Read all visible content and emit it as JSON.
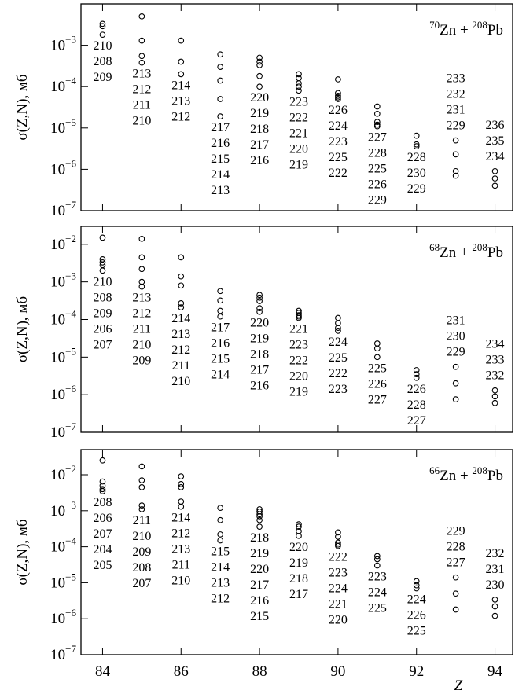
{
  "chart_data": [
    {
      "type": "scatter",
      "title": "70Zn + 208Pb",
      "y_label": "σ(Z,N), мб",
      "log_y": true,
      "xlim": [
        83.45,
        94.45
      ],
      "ylim": [
        1e-07,
        0.01
      ],
      "xticks": [
        84,
        86,
        88,
        90,
        92,
        94
      ],
      "yticks": [
        {
          "value": 0.001,
          "label": "10−3"
        },
        {
          "value": 0.0001,
          "label": "10−4"
        },
        {
          "value": 1e-05,
          "label": "10−5"
        },
        {
          "value": 1e-06,
          "label": "10−6"
        },
        {
          "value": 1e-07,
          "label": "10−7"
        }
      ],
      "groups": [
        {
          "x": 84,
          "values": [
            0.0033,
            0.0029,
            0.0018
          ],
          "labels": [
            "210",
            "208",
            "209"
          ]
        },
        {
          "x": 85,
          "values": [
            0.005,
            0.0013,
            0.00055,
            0.00038
          ],
          "labels": [
            "213",
            "212",
            "211",
            "210"
          ]
        },
        {
          "x": 86,
          "values": [
            0.0013,
            0.0004,
            0.0002
          ],
          "labels": [
            "214",
            "213",
            "212"
          ]
        },
        {
          "x": 87,
          "values": [
            0.0006,
            0.0003,
            0.00014,
            5e-05,
            1.9e-05
          ],
          "labels": [
            "217",
            "216",
            "215",
            "214",
            "213"
          ]
        },
        {
          "x": 88,
          "values": [
            0.0005,
            0.0004,
            0.00033,
            0.00018,
            0.0001
          ],
          "labels": [
            "220",
            "219",
            "218",
            "217",
            "216"
          ]
        },
        {
          "x": 89,
          "values": [
            0.0002,
            0.00016,
            0.00012,
            0.0001,
            8e-05
          ],
          "labels": [
            "223",
            "222",
            "221",
            "220",
            "219"
          ]
        },
        {
          "x": 90,
          "values": [
            0.00015,
            7e-05,
            6e-05,
            5.5e-05,
            5e-05
          ],
          "labels": [
            "226",
            "224",
            "223",
            "225",
            "222"
          ]
        },
        {
          "x": 91,
          "values": [
            3.3e-05,
            2.2e-05,
            1.4e-05,
            1.2e-05,
            1.1e-05
          ],
          "labels": [
            "227",
            "228",
            "225",
            "226",
            "229"
          ]
        },
        {
          "x": 92,
          "values": [
            6.5e-06,
            4e-06,
            3.6e-06
          ],
          "labels": [
            "228",
            "230",
            "229"
          ]
        },
        {
          "x": 93,
          "values": [
            5e-06,
            2.3e-06,
            9e-07,
            7e-07
          ],
          "labels": [
            "233",
            "232",
            "231",
            "229"
          ]
        },
        {
          "x": 94,
          "values": [
            9e-07,
            6e-07,
            4e-07
          ],
          "labels": [
            "236",
            "235",
            "234"
          ]
        }
      ]
    },
    {
      "type": "scatter",
      "title": "68Zn + 208Pb",
      "y_label": "σ(Z,N), мб",
      "log_y": true,
      "xlim": [
        83.45,
        94.45
      ],
      "ylim": [
        1e-07,
        0.03
      ],
      "xticks": [
        84,
        86,
        88,
        90,
        92,
        94
      ],
      "yticks": [
        {
          "value": 0.01,
          "label": "10−2"
        },
        {
          "value": 0.001,
          "label": "10−3"
        },
        {
          "value": 0.0001,
          "label": "10−4"
        },
        {
          "value": 1e-05,
          "label": "10−5"
        },
        {
          "value": 1e-06,
          "label": "10−6"
        },
        {
          "value": 1e-07,
          "label": "10−7"
        }
      ],
      "groups": [
        {
          "x": 84,
          "values": [
            0.015,
            0.004,
            0.0033,
            0.0028,
            0.002
          ],
          "labels": [
            "210",
            "208",
            "209",
            "206",
            "207"
          ]
        },
        {
          "x": 85,
          "values": [
            0.014,
            0.0045,
            0.0022,
            0.001,
            0.00075
          ],
          "labels": [
            "213",
            "212",
            "211",
            "210",
            "209"
          ]
        },
        {
          "x": 86,
          "values": [
            0.0045,
            0.0014,
            0.0008,
            0.00027,
            0.00021
          ],
          "labels": [
            "214",
            "213",
            "212",
            "211",
            "210"
          ]
        },
        {
          "x": 87,
          "values": [
            0.00057,
            0.00032,
            0.00017,
            0.00012
          ],
          "labels": [
            "217",
            "216",
            "215",
            "214"
          ]
        },
        {
          "x": 88,
          "values": [
            0.00045,
            0.00038,
            0.00031,
            0.0002,
            0.00016
          ],
          "labels": [
            "220",
            "219",
            "218",
            "217",
            "216"
          ]
        },
        {
          "x": 89,
          "values": [
            0.00017,
            0.00015,
            0.00013,
            0.00012,
            0.00011
          ],
          "labels": [
            "221",
            "223",
            "222",
            "220",
            "219"
          ]
        },
        {
          "x": 90,
          "values": [
            0.00011,
            8e-05,
            6e-05,
            5e-05
          ],
          "labels": [
            "224",
            "225",
            "222",
            "223"
          ]
        },
        {
          "x": 91,
          "values": [
            2.3e-05,
            1.7e-05,
            1e-05
          ],
          "labels": [
            "225",
            "226",
            "227"
          ]
        },
        {
          "x": 92,
          "values": [
            4.5e-06,
            3.5e-06,
            2.8e-06
          ],
          "labels": [
            "226",
            "228",
            "227"
          ]
        },
        {
          "x": 93,
          "values": [
            5.5e-06,
            2e-06,
            7.5e-07
          ],
          "labels": [
            "231",
            "230",
            "229"
          ]
        },
        {
          "x": 94,
          "values": [
            1.3e-06,
            9e-07,
            6e-07
          ],
          "labels": [
            "234",
            "233",
            "232"
          ]
        }
      ]
    },
    {
      "type": "scatter",
      "title": "66Zn + 208Pb",
      "y_label": "σ(Z,N), мб",
      "x_label": "Z",
      "log_y": true,
      "xlim": [
        83.45,
        94.45
      ],
      "ylim": [
        1e-07,
        0.05
      ],
      "xticks": [
        84,
        86,
        88,
        90,
        92,
        94
      ],
      "yticks": [
        {
          "value": 0.01,
          "label": "10−2"
        },
        {
          "value": 0.001,
          "label": "10−3"
        },
        {
          "value": 0.0001,
          "label": "10−4"
        },
        {
          "value": 1e-05,
          "label": "10−5"
        },
        {
          "value": 1e-06,
          "label": "10−6"
        },
        {
          "value": 1e-07,
          "label": "10−7"
        }
      ],
      "groups": [
        {
          "x": 84,
          "values": [
            0.025,
            0.0065,
            0.005,
            0.004,
            0.0035
          ],
          "labels": [
            "208",
            "206",
            "207",
            "204",
            "205"
          ]
        },
        {
          "x": 85,
          "values": [
            0.017,
            0.007,
            0.0045,
            0.0014,
            0.0011
          ],
          "labels": [
            "211",
            "210",
            "209",
            "208",
            "207"
          ]
        },
        {
          "x": 86,
          "values": [
            0.009,
            0.0055,
            0.0045,
            0.0018,
            0.0013
          ],
          "labels": [
            "214",
            "212",
            "213",
            "211",
            "210"
          ]
        },
        {
          "x": 87,
          "values": [
            0.0012,
            0.00055,
            0.00022,
            0.00015
          ],
          "labels": [
            "215",
            "214",
            "213",
            "212"
          ]
        },
        {
          "x": 88,
          "values": [
            0.0011,
            0.00095,
            0.0008,
            0.0007,
            0.00055,
            0.00036
          ],
          "labels": [
            "218",
            "219",
            "220",
            "217",
            "216",
            "215"
          ]
        },
        {
          "x": 89,
          "values": [
            0.00042,
            0.00036,
            0.00027,
            0.0002
          ],
          "labels": [
            "220",
            "219",
            "218",
            "217"
          ]
        },
        {
          "x": 90,
          "values": [
            0.00025,
            0.00019,
            0.00013,
            0.000115,
            0.000105
          ],
          "labels": [
            "222",
            "223",
            "224",
            "221",
            "220"
          ]
        },
        {
          "x": 91,
          "values": [
            5.5e-05,
            4.5e-05,
            3e-05
          ],
          "labels": [
            "223",
            "224",
            "225"
          ]
        },
        {
          "x": 92,
          "values": [
            1.1e-05,
            8.5e-06,
            7e-06
          ],
          "labels": [
            "224",
            "226",
            "225"
          ]
        },
        {
          "x": 93,
          "values": [
            1.4e-05,
            5e-06,
            1.8e-06
          ],
          "labels": [
            "229",
            "228",
            "227"
          ]
        },
        {
          "x": 94,
          "values": [
            3.4e-06,
            2.2e-06,
            1.2e-06
          ],
          "labels": [
            "232",
            "231",
            "230"
          ]
        }
      ]
    }
  ]
}
